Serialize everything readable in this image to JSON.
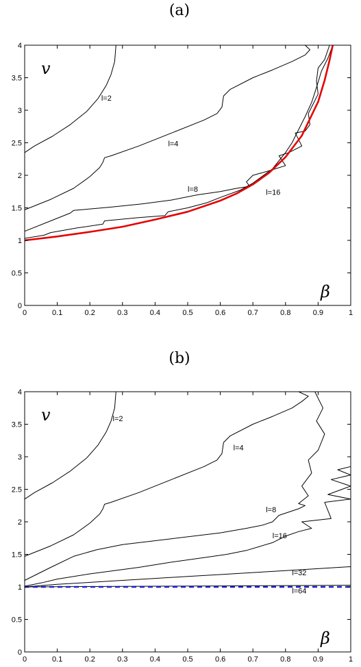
{
  "chart_data": [
    {
      "type": "line",
      "panel_label": "(a)",
      "ylabel": "v",
      "xlabel": "β",
      "xlim": [
        0,
        1
      ],
      "ylim": [
        0,
        4
      ],
      "xticks": [
        "0",
        "0.1",
        "0.2",
        "0.3",
        "0.4",
        "0.5",
        "0.6",
        "0.7",
        "0.8",
        "0.9",
        "1"
      ],
      "yticks": [
        "0",
        "0.5",
        "1",
        "1.5",
        "2",
        "2.5",
        "3",
        "3.5",
        "4"
      ],
      "grid": false,
      "curve_labels": [
        {
          "text": "l=2",
          "x": 0.235,
          "y": 3.15
        },
        {
          "text": "l=4",
          "x": 0.44,
          "y": 2.45
        },
        {
          "text": "l=8",
          "x": 0.5,
          "y": 1.75
        },
        {
          "text": "l=16",
          "x": 0.74,
          "y": 1.7
        }
      ],
      "series": [
        {
          "color": "#000000",
          "width": 1,
          "x": [
            0.28,
            0.276,
            0.265,
            0.25,
            0.225,
            0.19,
            0.14,
            0.085,
            0.03,
            0
          ],
          "y": [
            4.0,
            3.75,
            3.55,
            3.38,
            3.18,
            2.98,
            2.78,
            2.6,
            2.45,
            2.35
          ]
        },
        {
          "color": "#000000",
          "width": 1,
          "x": [
            0.86,
            0.875,
            0.86,
            0.82,
            0.76,
            0.7,
            0.63,
            0.61,
            0.605,
            0.59,
            0.55,
            0.45,
            0.35,
            0.265,
            0.245,
            0.24,
            0.23,
            0.2,
            0.15,
            0.08,
            0.03,
            0
          ],
          "y": [
            4.0,
            3.93,
            3.85,
            3.75,
            3.62,
            3.5,
            3.32,
            3.22,
            3.05,
            2.95,
            2.85,
            2.65,
            2.45,
            2.3,
            2.27,
            2.2,
            2.12,
            1.98,
            1.8,
            1.63,
            1.53,
            1.47
          ]
        },
        {
          "color": "#000000",
          "width": 1,
          "x": [
            0.935,
            0.92,
            0.9,
            0.895,
            0.9,
            0.885,
            0.87,
            0.875,
            0.86,
            0.83,
            0.85,
            0.81,
            0.78,
            0.8,
            0.75,
            0.7,
            0.68,
            0.69,
            0.65,
            0.6,
            0.53,
            0.45,
            0.36,
            0.26,
            0.15,
            0.14,
            0.08,
            0
          ],
          "y": [
            4.0,
            3.78,
            3.65,
            3.45,
            3.25,
            3.1,
            2.95,
            2.78,
            2.68,
            2.65,
            2.45,
            2.35,
            2.3,
            2.15,
            2.07,
            2.0,
            1.9,
            1.83,
            1.8,
            1.75,
            1.7,
            1.62,
            1.56,
            1.51,
            1.46,
            1.42,
            1.3,
            1.14
          ]
        },
        {
          "color": "#000000",
          "width": 1,
          "x": [
            0.945,
            0.93,
            0.91,
            0.895,
            0.88,
            0.86,
            0.84,
            0.82,
            0.8,
            0.76,
            0.7,
            0.66,
            0.6,
            0.56,
            0.5,
            0.44,
            0.43,
            0.35,
            0.245,
            0.24,
            0.16,
            0.08,
            0.06,
            0
          ],
          "y": [
            4.0,
            3.8,
            3.6,
            3.35,
            3.12,
            2.9,
            2.7,
            2.5,
            2.35,
            2.1,
            1.88,
            1.77,
            1.66,
            1.58,
            1.5,
            1.44,
            1.38,
            1.35,
            1.3,
            1.25,
            1.19,
            1.12,
            1.08,
            1.03
          ]
        },
        {
          "color": "#e60000",
          "width": 2.6,
          "x": [
            0,
            0.1,
            0.2,
            0.3,
            0.4,
            0.5,
            0.6,
            0.65,
            0.7,
            0.75,
            0.8,
            0.85,
            0.9,
            0.92,
            0.935,
            0.9449
          ],
          "y": [
            1.0,
            1.06,
            1.13,
            1.21,
            1.32,
            1.44,
            1.61,
            1.72,
            1.86,
            2.04,
            2.28,
            2.61,
            3.13,
            3.46,
            3.77,
            4.0
          ]
        }
      ]
    },
    {
      "type": "line",
      "panel_label": "(b)",
      "ylabel": "v",
      "xlabel": "β",
      "xlim": [
        0,
        1
      ],
      "ylim": [
        0,
        4
      ],
      "xticks": [
        "0",
        "0.1",
        "0.2",
        "0.3",
        "0.4",
        "0.5",
        "0.6",
        "0.7",
        "0.8",
        "0.9",
        "1"
      ],
      "yticks": [
        "0",
        "0.5",
        "1",
        "1.5",
        "2",
        "2.5",
        "3",
        "3.5",
        "4"
      ],
      "grid": false,
      "curve_labels": [
        {
          "text": "l=2",
          "x": 0.27,
          "y": 3.55
        },
        {
          "text": "l=4",
          "x": 0.64,
          "y": 3.1
        },
        {
          "text": "l=8",
          "x": 0.74,
          "y": 2.15
        },
        {
          "text": "l=16",
          "x": 0.76,
          "y": 1.75
        },
        {
          "text": "l=32",
          "x": 0.82,
          "y": 1.18
        },
        {
          "text": "l=64",
          "x": 0.82,
          "y": 0.9
        }
      ],
      "series": [
        {
          "color": "#000000",
          "width": 1,
          "x": [
            0.28,
            0.276,
            0.265,
            0.25,
            0.225,
            0.19,
            0.14,
            0.085,
            0.03,
            0
          ],
          "y": [
            4.0,
            3.75,
            3.55,
            3.38,
            3.18,
            2.98,
            2.78,
            2.6,
            2.45,
            2.35
          ]
        },
        {
          "color": "#000000",
          "width": 1,
          "x": [
            0.84,
            0.87,
            0.85,
            0.82,
            0.76,
            0.7,
            0.63,
            0.61,
            0.605,
            0.59,
            0.55,
            0.45,
            0.35,
            0.265,
            0.245,
            0.24,
            0.23,
            0.2,
            0.15,
            0.08,
            0.03,
            0
          ],
          "y": [
            4.0,
            3.93,
            3.85,
            3.75,
            3.62,
            3.5,
            3.32,
            3.22,
            3.05,
            2.95,
            2.85,
            2.65,
            2.45,
            2.3,
            2.27,
            2.2,
            2.12,
            1.98,
            1.8,
            1.63,
            1.53,
            1.47
          ]
        },
        {
          "color": "#000000",
          "width": 1,
          "x": [
            0.89,
            0.915,
            0.895,
            0.92,
            0.9,
            0.87,
            0.88,
            0.85,
            0.87,
            0.84,
            0.86,
            0.84,
            0.78,
            0.76,
            0.73,
            0.68,
            0.6,
            0.45,
            0.3,
            0.22,
            0.15,
            0.08,
            0
          ],
          "y": [
            4.0,
            3.75,
            3.55,
            3.35,
            3.1,
            2.95,
            2.75,
            2.55,
            2.4,
            2.28,
            2.25,
            2.2,
            2.1,
            2.0,
            1.95,
            1.9,
            1.83,
            1.74,
            1.65,
            1.57,
            1.47,
            1.3,
            1.1
          ]
        },
        {
          "color": "#000000",
          "width": 1,
          "x": [
            1.0,
            0.96,
            1.0,
            0.94,
            1.0,
            0.93,
            1.0,
            0.92,
            0.94,
            0.85,
            0.88,
            0.84,
            0.8,
            0.76,
            0.72,
            0.68,
            0.62,
            0.55,
            0.45,
            0.35,
            0.2,
            0.1,
            0.05,
            0
          ],
          "y": [
            2.85,
            2.8,
            2.72,
            2.65,
            2.55,
            2.42,
            2.35,
            2.3,
            2.05,
            2.0,
            1.9,
            1.85,
            1.78,
            1.68,
            1.62,
            1.56,
            1.5,
            1.45,
            1.38,
            1.3,
            1.2,
            1.12,
            1.06,
            1.01
          ]
        },
        {
          "color": "#000000",
          "width": 1,
          "x": [
            0,
            0.1,
            0.2,
            0.3,
            0.4,
            0.5,
            0.6,
            0.7,
            0.8,
            0.9,
            1.0
          ],
          "y": [
            1.0,
            1.04,
            1.07,
            1.1,
            1.13,
            1.16,
            1.19,
            1.22,
            1.25,
            1.28,
            1.31
          ]
        },
        {
          "color": "#000000",
          "width": 1,
          "x": [
            0,
            0.2,
            0.4,
            0.6,
            0.8,
            1.0
          ],
          "y": [
            1.0,
            1.005,
            1.01,
            1.015,
            1.02,
            1.025
          ]
        },
        {
          "color": "#1f1fcc",
          "width": 2.4,
          "dash": "7,5",
          "x": [
            0,
            1.0
          ],
          "y": [
            1.0,
            1.0
          ]
        }
      ]
    }
  ]
}
